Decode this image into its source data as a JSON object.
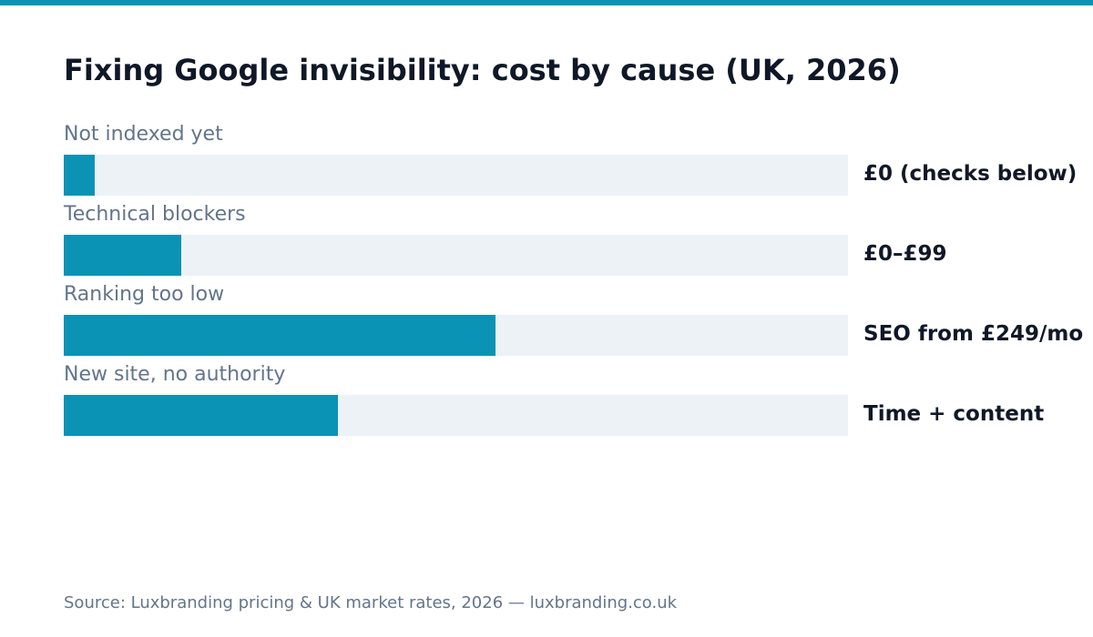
{
  "colors": {
    "accent": "#0a93b5",
    "track": "#edf2f7",
    "title": "#101827",
    "label": "#64748b"
  },
  "chart_data": {
    "type": "bar",
    "orientation": "horizontal",
    "title": "Fixing Google invisibility: cost by cause (UK, 2026)",
    "categories": [
      "Not indexed yet",
      "Technical blockers",
      "Ranking too low",
      "New site, no authority"
    ],
    "values": [
      4,
      15,
      55,
      35
    ],
    "value_labels": [
      "£0 (checks below)",
      "£0–£99",
      "SEO from £249/mo",
      "Time + content"
    ],
    "xlim": [
      0,
      100
    ],
    "grid": false,
    "legend": "none"
  },
  "source": "Source: Luxbranding pricing & UK market rates, 2026 — luxbranding.co.uk"
}
